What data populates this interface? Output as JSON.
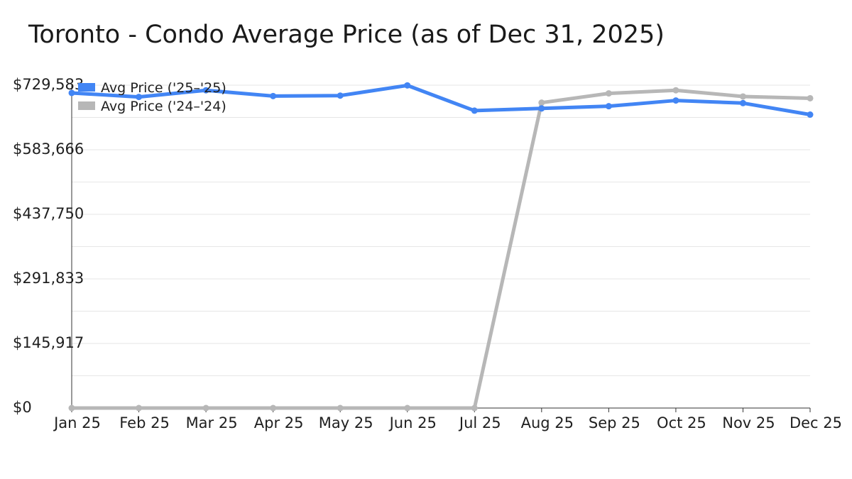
{
  "chart_data": {
    "type": "line",
    "title": "Toronto - Condo Average Price (as of Dec 31, 2025)",
    "xlabel": "",
    "ylabel": "",
    "categories": [
      "Jan 25",
      "Feb 25",
      "Mar 25",
      "Apr 25",
      "May 25",
      "Jun 25",
      "Jul 25",
      "Aug 25",
      "Sep 25",
      "Oct 25",
      "Nov 25",
      "Dec 25"
    ],
    "ylim": [
      0,
      729583
    ],
    "yticks": [
      0,
      145917,
      291833,
      437750,
      583666,
      729583
    ],
    "ytick_labels": [
      "$0",
      "$145,917",
      "$291,833",
      "$437,750",
      "$583,666",
      "$729,583"
    ],
    "grid": true,
    "legend_position": "top-left",
    "series": [
      {
        "name": "Avg Price ('25–'25)",
        "color": "#4285f4",
        "values": [
          712000,
          703000,
          718000,
          705000,
          706000,
          729000,
          672000,
          677000,
          682000,
          695000,
          689000,
          663000
        ]
      },
      {
        "name": "Avg Price ('24–'24)",
        "color": "#b7b7b7",
        "values": [
          0,
          0,
          0,
          0,
          0,
          0,
          0,
          690000,
          711000,
          718000,
          704000,
          700000
        ]
      }
    ]
  }
}
